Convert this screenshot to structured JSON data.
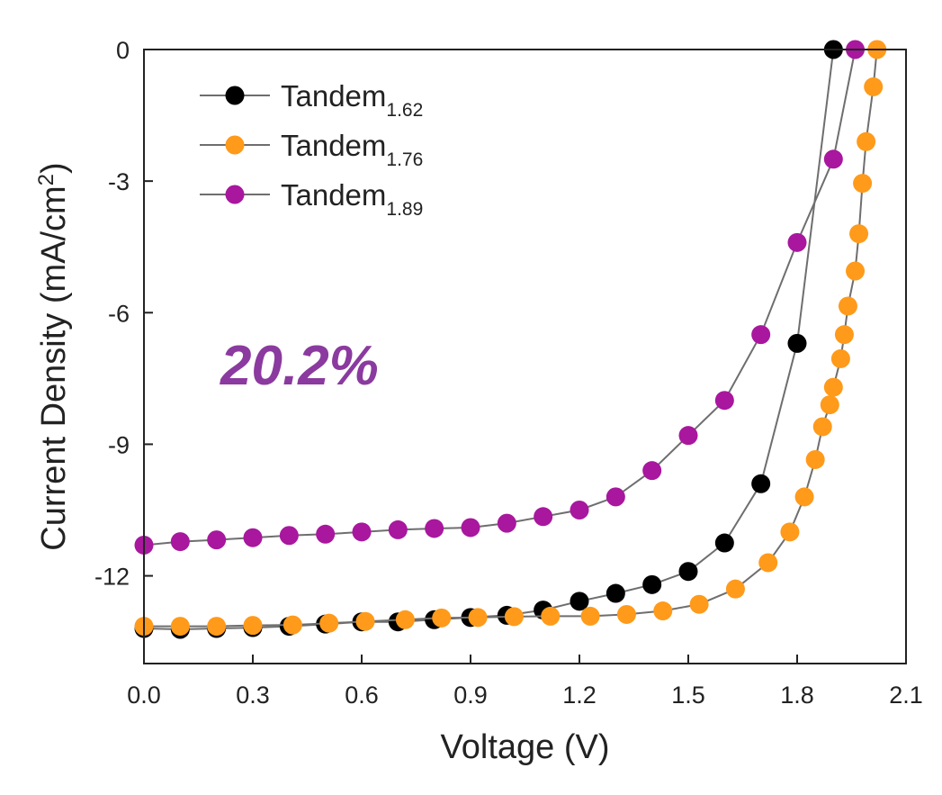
{
  "chart_data": {
    "type": "line",
    "title": "",
    "xlabel": "Voltage (V)",
    "ylabel": "Current Density (mA/cm",
    "ylabel_sup": "2",
    "ylabel_close": ")",
    "xlim": [
      0.0,
      2.1
    ],
    "ylim": [
      -14.0,
      0.0
    ],
    "x_ticks": [
      "0.0",
      "0.3",
      "0.6",
      "0.9",
      "1.2",
      "1.5",
      "1.8",
      "2.1"
    ],
    "y_ticks": [
      "0",
      "-3",
      "-6",
      "-9",
      "-12"
    ],
    "x_tick_values": [
      0.0,
      0.3,
      0.6,
      0.9,
      1.2,
      1.5,
      1.8,
      2.1
    ],
    "y_tick_values": [
      0,
      -3,
      -6,
      -9,
      -12
    ],
    "grid": false,
    "legend_position": "top-left",
    "annotation": "20.2%",
    "annotation_color": "#8b3a9f",
    "line_color": "#6e6e6e",
    "series": [
      {
        "name": "Tandem",
        "subscript": "1.62",
        "color": "#000000",
        "points": [
          [
            0.0,
            -13.2
          ],
          [
            0.1,
            -13.22
          ],
          [
            0.2,
            -13.2
          ],
          [
            0.3,
            -13.18
          ],
          [
            0.4,
            -13.15
          ],
          [
            0.5,
            -13.1
          ],
          [
            0.6,
            -13.05
          ],
          [
            0.7,
            -13.05
          ],
          [
            0.8,
            -13.0
          ],
          [
            0.9,
            -12.95
          ],
          [
            1.0,
            -12.9
          ],
          [
            1.1,
            -12.78
          ],
          [
            1.2,
            -12.58
          ],
          [
            1.3,
            -12.4
          ],
          [
            1.4,
            -12.2
          ],
          [
            1.5,
            -11.9
          ],
          [
            1.6,
            -11.25
          ],
          [
            1.7,
            -9.9
          ],
          [
            1.8,
            -6.7
          ],
          [
            1.9,
            0.0
          ]
        ]
      },
      {
        "name": "Tandem",
        "subscript": "1.76",
        "color": "#ff9a1a",
        "points": [
          [
            0.0,
            -13.15
          ],
          [
            0.1,
            -13.15
          ],
          [
            0.2,
            -13.15
          ],
          [
            0.3,
            -13.13
          ],
          [
            0.41,
            -13.12
          ],
          [
            0.51,
            -13.08
          ],
          [
            0.61,
            -13.04
          ],
          [
            0.72,
            -13.0
          ],
          [
            0.82,
            -12.96
          ],
          [
            0.92,
            -12.95
          ],
          [
            1.02,
            -12.93
          ],
          [
            1.12,
            -12.92
          ],
          [
            1.23,
            -12.92
          ],
          [
            1.33,
            -12.88
          ],
          [
            1.43,
            -12.8
          ],
          [
            1.53,
            -12.65
          ],
          [
            1.63,
            -12.3
          ],
          [
            1.72,
            -11.7
          ],
          [
            1.78,
            -11.0
          ],
          [
            1.82,
            -10.2
          ],
          [
            1.85,
            -9.35
          ],
          [
            1.87,
            -8.6
          ],
          [
            1.89,
            -8.1
          ],
          [
            1.9,
            -7.7
          ],
          [
            1.92,
            -7.05
          ],
          [
            1.93,
            -6.5
          ],
          [
            1.94,
            -5.85
          ],
          [
            1.96,
            -5.05
          ],
          [
            1.97,
            -4.2
          ],
          [
            1.98,
            -3.05
          ],
          [
            1.99,
            -2.1
          ],
          [
            2.01,
            -0.85
          ],
          [
            2.02,
            0.0
          ]
        ]
      },
      {
        "name": "Tandem",
        "subscript": "1.89",
        "color": "#a8179e",
        "points": [
          [
            0.0,
            -11.3
          ],
          [
            0.1,
            -11.22
          ],
          [
            0.2,
            -11.18
          ],
          [
            0.3,
            -11.13
          ],
          [
            0.4,
            -11.08
          ],
          [
            0.5,
            -11.05
          ],
          [
            0.6,
            -11.0
          ],
          [
            0.7,
            -10.95
          ],
          [
            0.8,
            -10.92
          ],
          [
            0.9,
            -10.9
          ],
          [
            1.0,
            -10.8
          ],
          [
            1.1,
            -10.65
          ],
          [
            1.2,
            -10.5
          ],
          [
            1.3,
            -10.2
          ],
          [
            1.4,
            -9.6
          ],
          [
            1.5,
            -8.8
          ],
          [
            1.6,
            -8.0
          ],
          [
            1.7,
            -6.5
          ],
          [
            1.8,
            -4.4
          ],
          [
            1.9,
            -2.5
          ],
          [
            1.96,
            0.0
          ]
        ]
      }
    ]
  }
}
